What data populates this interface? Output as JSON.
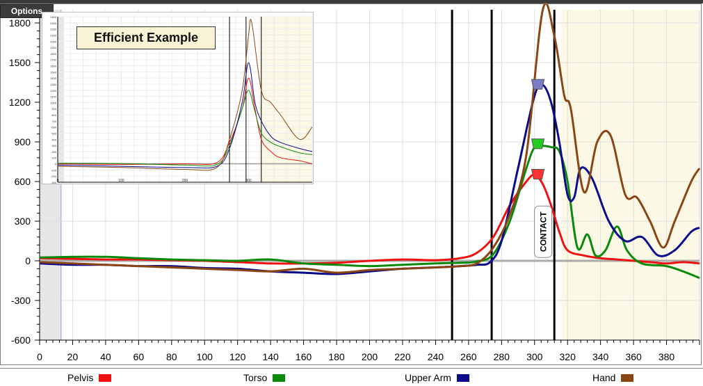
{
  "toolbar": {
    "options_label": "Options"
  },
  "colors": {
    "pelvis": "#ee1111",
    "torso": "#0a8a0a",
    "upper_arm": "#0a0a8a",
    "hand": "#8b4513",
    "shade": "#fbf8e6"
  },
  "chart_data": {
    "type": "line",
    "title": "",
    "xlabel": "",
    "ylabel": "",
    "xlim": [
      0,
      400
    ],
    "ylim": [
      -600,
      1900
    ],
    "x_ticks": [
      0,
      20,
      40,
      60,
      80,
      100,
      120,
      140,
      160,
      180,
      200,
      220,
      240,
      260,
      280,
      300,
      320,
      340,
      360,
      380
    ],
    "y_ticks": [
      -600,
      -300,
      0,
      300,
      600,
      900,
      1200,
      1500,
      1800
    ],
    "grid": true,
    "legend": "bottom",
    "event_lines_x": [
      250,
      274,
      312
    ],
    "shaded_region_x": [
      0,
      13
    ],
    "highlight_region_x": [
      316,
      400
    ],
    "annotation": {
      "label": "CONTACT",
      "x": 305,
      "y": 220
    },
    "series": [
      {
        "name": "Pelvis",
        "color": "#ee1111",
        "x": [
          0,
          20,
          40,
          60,
          80,
          100,
          120,
          140,
          160,
          180,
          200,
          220,
          240,
          255,
          265,
          275,
          285,
          295,
          300,
          305,
          310,
          315,
          320,
          330,
          340,
          350,
          360,
          370,
          380,
          390,
          400
        ],
        "y": [
          20,
          15,
          10,
          10,
          5,
          0,
          -10,
          -20,
          -20,
          -15,
          0,
          10,
          5,
          20,
          60,
          180,
          420,
          600,
          650,
          580,
          420,
          220,
          80,
          40,
          20,
          10,
          0,
          -10,
          -20,
          -10,
          -20
        ]
      },
      {
        "name": "Torso",
        "color": "#0a8a0a",
        "x": [
          0,
          20,
          40,
          60,
          80,
          100,
          120,
          140,
          160,
          180,
          200,
          220,
          240,
          255,
          265,
          275,
          285,
          295,
          300,
          305,
          310,
          315,
          320,
          326,
          332,
          337,
          343,
          350,
          356,
          365,
          380,
          390,
          400
        ],
        "y": [
          25,
          30,
          30,
          20,
          10,
          5,
          0,
          10,
          -20,
          -30,
          -40,
          -30,
          -20,
          -15,
          -5,
          50,
          300,
          700,
          860,
          870,
          860,
          830,
          600,
          100,
          200,
          40,
          80,
          260,
          80,
          -20,
          -40,
          -80,
          -130
        ]
      },
      {
        "name": "Upper Arm",
        "color": "#0a0a8a",
        "x": [
          0,
          20,
          40,
          60,
          80,
          100,
          120,
          140,
          160,
          180,
          200,
          220,
          240,
          255,
          265,
          273,
          280,
          290,
          300,
          305,
          310,
          315,
          320,
          324,
          328,
          335,
          345,
          355,
          365,
          375,
          385,
          395,
          400
        ],
        "y": [
          -20,
          -30,
          -30,
          -40,
          -40,
          -55,
          -60,
          -80,
          -90,
          -100,
          -80,
          -60,
          -50,
          -40,
          -30,
          -10,
          150,
          700,
          1250,
          1330,
          1200,
          900,
          500,
          480,
          700,
          620,
          300,
          150,
          180,
          40,
          80,
          220,
          250
        ]
      },
      {
        "name": "Hand",
        "color": "#8b4513",
        "x": [
          0,
          20,
          40,
          60,
          80,
          100,
          120,
          140,
          160,
          180,
          200,
          220,
          240,
          255,
          265,
          275,
          285,
          295,
          305,
          312,
          318,
          322,
          330,
          338,
          346,
          355,
          362,
          370,
          378,
          385,
          395,
          400
        ],
        "y": [
          -10,
          -20,
          -30,
          -40,
          -50,
          -60,
          -70,
          -80,
          -60,
          -90,
          -70,
          -60,
          -50,
          -40,
          -20,
          100,
          350,
          800,
          1900,
          1700,
          1250,
          1150,
          520,
          900,
          950,
          500,
          480,
          300,
          100,
          300,
          600,
          700
        ]
      }
    ]
  },
  "inset": {
    "title": "Efficient Example"
  },
  "inset_chart": {
    "type": "line",
    "xlim": [
      0,
      400
    ],
    "ylim": [
      -300,
      2400
    ],
    "x_ticks": [
      0,
      100,
      200,
      300
    ],
    "series": [
      {
        "name": "Pelvis",
        "x": [
          0,
          100,
          200,
          250,
          270,
          290,
          300,
          310,
          320,
          335,
          350,
          380,
          400
        ],
        "y": [
          0,
          -10,
          0,
          20,
          350,
          900,
          1400,
          900,
          400,
          200,
          100,
          50,
          0
        ]
      },
      {
        "name": "Torso",
        "x": [
          0,
          100,
          200,
          250,
          270,
          290,
          300,
          310,
          320,
          335,
          350,
          380,
          400
        ],
        "y": [
          10,
          5,
          -20,
          -10,
          300,
          900,
          1200,
          850,
          500,
          350,
          280,
          180,
          150
        ]
      },
      {
        "name": "Upper Arm",
        "x": [
          0,
          100,
          200,
          250,
          270,
          290,
          300,
          310,
          320,
          335,
          350,
          380,
          400
        ],
        "y": [
          -20,
          -40,
          -60,
          -40,
          250,
          1000,
          1650,
          1000,
          700,
          450,
          350,
          250,
          200
        ]
      },
      {
        "name": "Hand",
        "x": [
          0,
          100,
          200,
          250,
          270,
          290,
          300,
          305,
          320,
          335,
          350,
          380,
          400
        ],
        "y": [
          -40,
          -60,
          -90,
          -60,
          400,
          1200,
          2100,
          2300,
          1200,
          1000,
          800,
          400,
          600
        ]
      }
    ]
  },
  "legend": {
    "items": [
      {
        "label": "Pelvis",
        "color": "#ee1111"
      },
      {
        "label": "Torso",
        "color": "#0a8a0a"
      },
      {
        "label": "Upper Arm",
        "color": "#0a0a8a"
      },
      {
        "label": "Hand",
        "color": "#8b4513"
      }
    ]
  }
}
